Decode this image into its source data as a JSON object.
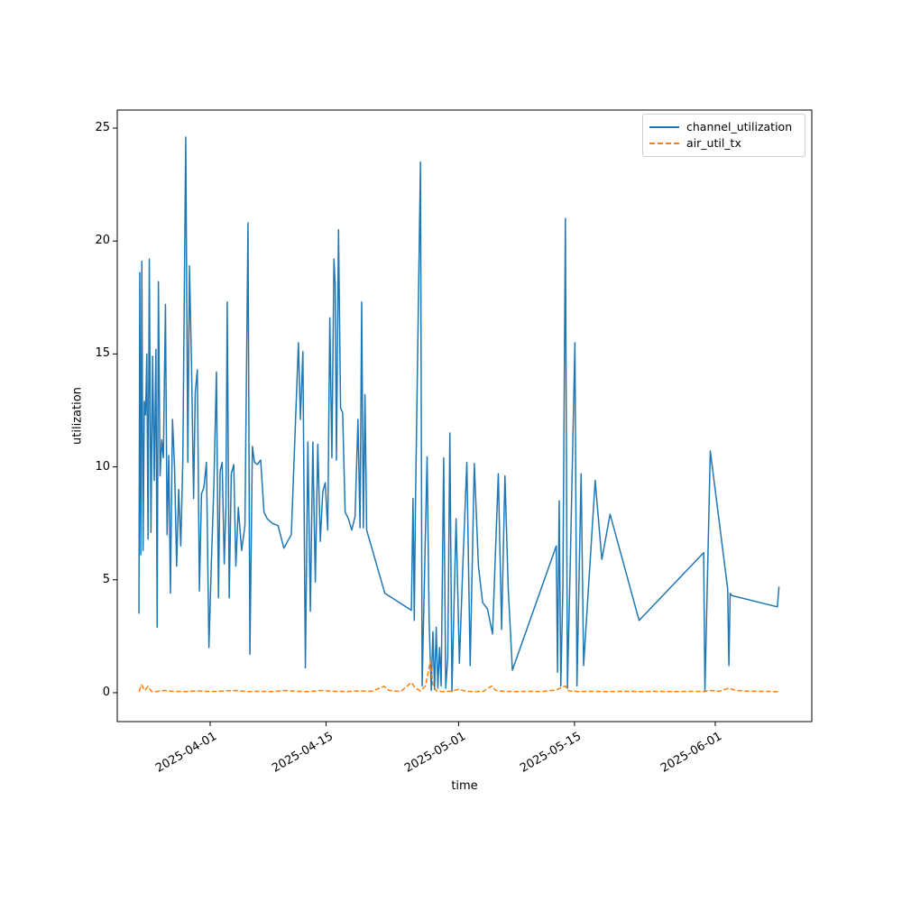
{
  "figure": {
    "title": "",
    "xlabel": "time",
    "ylabel": "utilization"
  },
  "chart_data": {
    "type": "line",
    "title": "",
    "xlabel": "time",
    "ylabel": "utilization",
    "grid": false,
    "legend_position": "upper right",
    "x_unit": "days since 2025-03-20",
    "xlim_days": [
      0.78,
      84.66
    ],
    "ylim": [
      -1.28,
      25.8
    ],
    "yticks": [
      0,
      5,
      10,
      15,
      20,
      25
    ],
    "ytick_labels": [
      "0",
      "5",
      "10",
      "15",
      "20",
      "25"
    ],
    "xtick_days": [
      12,
      26,
      42,
      56,
      73
    ],
    "xtick_labels": [
      "2025-04-01",
      "2025-04-15",
      "2025-05-01",
      "2025-05-15",
      "2025-06-01"
    ],
    "series": [
      {
        "name": "channel_utilization",
        "color": "#1f77b4",
        "line_style": "solid",
        "line_width": 1.5,
        "points": [
          [
            3.4,
            3.5
          ],
          [
            3.5,
            18.6
          ],
          [
            3.62,
            6.1
          ],
          [
            3.75,
            19.1
          ],
          [
            3.9,
            6.3
          ],
          [
            4.05,
            12.9
          ],
          [
            4.2,
            12.3
          ],
          [
            4.35,
            15.0
          ],
          [
            4.5,
            6.8
          ],
          [
            4.65,
            19.2
          ],
          [
            4.85,
            7.1
          ],
          [
            5.05,
            14.9
          ],
          [
            5.25,
            9.4
          ],
          [
            5.45,
            15.2
          ],
          [
            5.6,
            2.9
          ],
          [
            5.75,
            18.2
          ],
          [
            5.95,
            9.6
          ],
          [
            6.15,
            11.2
          ],
          [
            6.35,
            10.4
          ],
          [
            6.6,
            17.2
          ],
          [
            6.8,
            7.0
          ],
          [
            7.0,
            10.5
          ],
          [
            7.2,
            4.4
          ],
          [
            7.45,
            12.1
          ],
          [
            7.7,
            10.0
          ],
          [
            7.95,
            5.6
          ],
          [
            8.2,
            9.0
          ],
          [
            8.45,
            6.5
          ],
          [
            8.7,
            10.3
          ],
          [
            9.05,
            24.6
          ],
          [
            9.3,
            10.2
          ],
          [
            9.5,
            18.9
          ],
          [
            9.75,
            14.5
          ],
          [
            10.0,
            8.6
          ],
          [
            10.2,
            13.3
          ],
          [
            10.45,
            14.3
          ],
          [
            10.7,
            4.5
          ],
          [
            10.95,
            8.8
          ],
          [
            11.25,
            9.1
          ],
          [
            11.55,
            10.2
          ],
          [
            11.85,
            2.0
          ],
          [
            12.15,
            5.8
          ],
          [
            12.45,
            9.2
          ],
          [
            12.76,
            14.2
          ],
          [
            13.0,
            4.2
          ],
          [
            13.2,
            9.8
          ],
          [
            13.45,
            10.2
          ],
          [
            13.7,
            5.7
          ],
          [
            13.9,
            8.2
          ],
          [
            14.06,
            17.3
          ],
          [
            14.3,
            4.2
          ],
          [
            14.55,
            9.7
          ],
          [
            14.85,
            10.1
          ],
          [
            15.1,
            5.6
          ],
          [
            15.4,
            8.2
          ],
          [
            15.8,
            6.3
          ],
          [
            16.2,
            7.4
          ],
          [
            16.57,
            20.8
          ],
          [
            16.8,
            1.7
          ],
          [
            17.1,
            10.9
          ],
          [
            17.35,
            10.2
          ],
          [
            17.7,
            10.1
          ],
          [
            18.1,
            10.3
          ],
          [
            18.5,
            8.0
          ],
          [
            18.9,
            7.7
          ],
          [
            19.5,
            7.5
          ],
          [
            20.2,
            7.4
          ],
          [
            20.9,
            6.4
          ],
          [
            21.8,
            7.0
          ],
          [
            22.66,
            15.5
          ],
          [
            22.9,
            12.1
          ],
          [
            23.2,
            15.1
          ],
          [
            23.5,
            1.1
          ],
          [
            23.8,
            11.1
          ],
          [
            24.1,
            3.6
          ],
          [
            24.4,
            11.1
          ],
          [
            24.7,
            4.9
          ],
          [
            25.0,
            11.0
          ],
          [
            25.3,
            6.7
          ],
          [
            25.6,
            8.9
          ],
          [
            25.9,
            9.3
          ],
          [
            26.2,
            7.2
          ],
          [
            26.45,
            16.6
          ],
          [
            26.7,
            10.4
          ],
          [
            26.95,
            19.2
          ],
          [
            27.1,
            18.1
          ],
          [
            27.25,
            10.3
          ],
          [
            27.5,
            20.5
          ],
          [
            27.75,
            12.6
          ],
          [
            28.0,
            12.4
          ],
          [
            28.3,
            8.0
          ],
          [
            28.7,
            7.7
          ],
          [
            29.1,
            7.2
          ],
          [
            29.5,
            7.8
          ],
          [
            29.85,
            12.1
          ],
          [
            30.1,
            7.3
          ],
          [
            30.3,
            17.3
          ],
          [
            30.5,
            7.3
          ],
          [
            30.7,
            13.2
          ],
          [
            30.9,
            7.2
          ],
          [
            33.1,
            4.4
          ],
          [
            36.3,
            3.65
          ],
          [
            36.5,
            8.6
          ],
          [
            36.65,
            3.2
          ],
          [
            36.8,
            8.5
          ],
          [
            37.4,
            23.5
          ],
          [
            37.6,
            0.3
          ],
          [
            38.2,
            10.45
          ],
          [
            38.45,
            3.1
          ],
          [
            38.7,
            0.1
          ],
          [
            38.9,
            2.7
          ],
          [
            39.1,
            0.15
          ],
          [
            39.3,
            2.9
          ],
          [
            39.5,
            0.2
          ],
          [
            39.7,
            2.0
          ],
          [
            39.9,
            0.3
          ],
          [
            40.2,
            10.4
          ],
          [
            40.45,
            0.2
          ],
          [
            40.7,
            1.6
          ],
          [
            40.95,
            11.5
          ],
          [
            41.2,
            0.05
          ],
          [
            41.7,
            7.7
          ],
          [
            42.1,
            1.3
          ],
          [
            42.5,
            5.5
          ],
          [
            43.0,
            10.2
          ],
          [
            43.4,
            1.2
          ],
          [
            43.9,
            10.15
          ],
          [
            44.4,
            5.6
          ],
          [
            44.9,
            4.0
          ],
          [
            45.5,
            3.7
          ],
          [
            46.1,
            2.6
          ],
          [
            46.8,
            9.7
          ],
          [
            47.2,
            2.8
          ],
          [
            47.6,
            9.6
          ],
          [
            48.0,
            4.6
          ],
          [
            48.5,
            1.0
          ],
          [
            53.8,
            6.5
          ],
          [
            53.95,
            0.9
          ],
          [
            54.15,
            8.5
          ],
          [
            54.35,
            0.3
          ],
          [
            54.6,
            4.7
          ],
          [
            54.9,
            21.0
          ],
          [
            55.15,
            0.2
          ],
          [
            55.5,
            5.9
          ],
          [
            56.05,
            15.5
          ],
          [
            56.3,
            0.3
          ],
          [
            56.8,
            9.7
          ],
          [
            57.1,
            1.2
          ],
          [
            58.5,
            9.4
          ],
          [
            59.3,
            5.9
          ],
          [
            60.3,
            7.9
          ],
          [
            63.8,
            3.2
          ],
          [
            71.6,
            6.2
          ],
          [
            71.75,
            0.05
          ],
          [
            72.4,
            10.7
          ],
          [
            74.5,
            4.6
          ],
          [
            74.65,
            1.2
          ],
          [
            74.8,
            4.4
          ],
          [
            75.0,
            4.3
          ],
          [
            80.5,
            3.8
          ],
          [
            80.7,
            4.7
          ]
        ]
      },
      {
        "name": "air_util_tx",
        "color": "#ff7f0e",
        "line_style": "dashed",
        "line_width": 1.5,
        "points": [
          [
            3.4,
            0.05
          ],
          [
            3.7,
            0.35
          ],
          [
            4.1,
            0.1
          ],
          [
            4.5,
            0.28
          ],
          [
            4.9,
            0.06
          ],
          [
            5.5,
            0.05
          ],
          [
            6.5,
            0.1
          ],
          [
            7.5,
            0.06
          ],
          [
            9.0,
            0.05
          ],
          [
            10.5,
            0.08
          ],
          [
            12.0,
            0.05
          ],
          [
            13.5,
            0.07
          ],
          [
            15.0,
            0.1
          ],
          [
            16.5,
            0.05
          ],
          [
            18.0,
            0.06
          ],
          [
            19.5,
            0.05
          ],
          [
            21.0,
            0.1
          ],
          [
            22.5,
            0.06
          ],
          [
            24.0,
            0.05
          ],
          [
            25.5,
            0.1
          ],
          [
            27.0,
            0.06
          ],
          [
            28.5,
            0.05
          ],
          [
            30.0,
            0.08
          ],
          [
            31.5,
            0.06
          ],
          [
            33.0,
            0.28
          ],
          [
            33.6,
            0.1
          ],
          [
            35.0,
            0.05
          ],
          [
            36.3,
            0.45
          ],
          [
            36.8,
            0.2
          ],
          [
            37.4,
            0.08
          ],
          [
            38.0,
            0.3
          ],
          [
            38.6,
            1.4
          ],
          [
            38.9,
            0.35
          ],
          [
            39.3,
            0.08
          ],
          [
            40.0,
            0.05
          ],
          [
            41.0,
            0.06
          ],
          [
            42.0,
            0.15
          ],
          [
            43.0,
            0.06
          ],
          [
            44.0,
            0.05
          ],
          [
            45.0,
            0.06
          ],
          [
            46.0,
            0.3
          ],
          [
            46.5,
            0.1
          ],
          [
            47.5,
            0.06
          ],
          [
            49.0,
            0.05
          ],
          [
            50.5,
            0.06
          ],
          [
            52.0,
            0.05
          ],
          [
            53.8,
            0.12
          ],
          [
            54.9,
            0.3
          ],
          [
            55.3,
            0.08
          ],
          [
            56.5,
            0.05
          ],
          [
            58.0,
            0.06
          ],
          [
            60.0,
            0.05
          ],
          [
            62.0,
            0.06
          ],
          [
            64.0,
            0.05
          ],
          [
            66.0,
            0.06
          ],
          [
            68.0,
            0.05
          ],
          [
            70.0,
            0.06
          ],
          [
            71.6,
            0.05
          ],
          [
            72.4,
            0.1
          ],
          [
            73.5,
            0.06
          ],
          [
            74.6,
            0.2
          ],
          [
            75.5,
            0.1
          ],
          [
            77.0,
            0.07
          ],
          [
            78.5,
            0.06
          ],
          [
            80.0,
            0.05
          ],
          [
            80.7,
            0.04
          ]
        ]
      }
    ]
  }
}
